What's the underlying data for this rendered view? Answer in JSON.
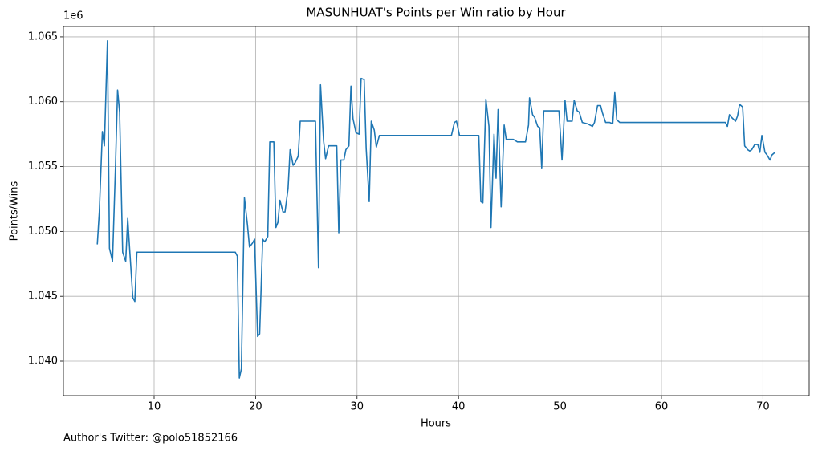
{
  "chart_data": {
    "type": "line",
    "title": "MASUNHUAT's Points per Win ratio by Hour",
    "x_label": "Hours",
    "y_label": "Points/Wins",
    "y_offset_label": "1e6",
    "footnote": "Author's Twitter: @polo51852166",
    "xlim": [
      1.06,
      74.56
    ],
    "ylim": [
      1.03734,
      1.0658
    ],
    "xticks": [
      10,
      20,
      30,
      40,
      50,
      60,
      70
    ],
    "yticks": [
      {
        "value": 1.04,
        "label": "1.040"
      },
      1.045,
      {
        "value": 1.05,
        "label": "1.050"
      },
      1.055,
      {
        "value": 1.06,
        "label": "1.060"
      },
      1.065
    ],
    "grid": true,
    "series": [
      {
        "color": "#1f77b4",
        "x": [
          4.4,
          4.6,
          4.9,
          5.1,
          5.4,
          5.6,
          5.9,
          6.2,
          6.4,
          6.6,
          6.9,
          7.2,
          7.4,
          7.6,
          7.9,
          8.1,
          8.3,
          18.0,
          18.2,
          18.4,
          18.6,
          18.9,
          19.2,
          19.4,
          19.7,
          19.9,
          20.2,
          20.4,
          20.7,
          20.9,
          21.2,
          21.4,
          21.8,
          22.0,
          22.2,
          22.4,
          22.7,
          22.9,
          23.2,
          23.4,
          23.7,
          23.9,
          24.2,
          24.4,
          25.9,
          26.2,
          26.4,
          26.7,
          26.9,
          27.2,
          28.0,
          28.2,
          28.4,
          28.7,
          28.9,
          29.2,
          29.4,
          29.6,
          29.9,
          30.2,
          30.4,
          30.7,
          30.9,
          31.2,
          31.4,
          31.7,
          31.9,
          32.2,
          39.3,
          39.6,
          39.8,
          40.1,
          42.0,
          42.2,
          42.4,
          42.7,
          43.0,
          43.2,
          43.5,
          43.7,
          43.9,
          44.2,
          44.5,
          44.7,
          45.4,
          45.8,
          46.6,
          46.9,
          47.0,
          47.3,
          47.5,
          47.8,
          48.0,
          48.2,
          48.4,
          49.9,
          50.2,
          50.5,
          50.7,
          51.2,
          51.4,
          51.7,
          51.9,
          52.2,
          52.7,
          53.2,
          53.4,
          53.7,
          54.0,
          54.2,
          54.5,
          54.9,
          55.2,
          55.4,
          55.6,
          55.9,
          66.3,
          66.5,
          66.7,
          66.9,
          67.3,
          67.5,
          67.7,
          68.0,
          68.2,
          68.5,
          68.7,
          68.9,
          69.2,
          69.5,
          69.7,
          69.9,
          70.2,
          70.4,
          70.7,
          70.9,
          71.2
        ],
        "values": [
          1.049,
          1.0515,
          1.0577,
          1.0566,
          1.0647,
          1.0487,
          1.0477,
          1.0552,
          1.0609,
          1.0592,
          1.0484,
          1.0477,
          1.051,
          1.0485,
          1.0449,
          1.0446,
          1.0484,
          1.0484,
          1.0481,
          1.0387,
          1.0394,
          1.0526,
          1.0505,
          1.0488,
          1.0491,
          1.0494,
          1.0419,
          1.0421,
          1.0494,
          1.0492,
          1.0496,
          1.0569,
          1.0569,
          1.0503,
          1.0507,
          1.0524,
          1.0515,
          1.0515,
          1.0533,
          1.0563,
          1.0551,
          1.0553,
          1.0558,
          1.0585,
          1.0585,
          1.0472,
          1.0613,
          1.057,
          1.0556,
          1.0566,
          1.0566,
          1.0499,
          1.0555,
          1.0555,
          1.0563,
          1.0566,
          1.0612,
          1.0587,
          1.0576,
          1.0575,
          1.0618,
          1.0617,
          1.0564,
          1.0523,
          1.0585,
          1.0578,
          1.0565,
          1.0574,
          1.0574,
          1.0584,
          1.0585,
          1.0574,
          1.0574,
          1.0523,
          1.0522,
          1.0602,
          1.0581,
          1.0503,
          1.0575,
          1.0541,
          1.0594,
          1.0519,
          1.0582,
          1.0571,
          1.0571,
          1.0569,
          1.0569,
          1.0582,
          1.0603,
          1.059,
          1.0588,
          1.0581,
          1.058,
          1.0549,
          1.0593,
          1.0593,
          1.0555,
          1.0601,
          1.0585,
          1.0585,
          1.0601,
          1.0593,
          1.0592,
          1.0584,
          1.0583,
          1.0581,
          1.0584,
          1.0597,
          1.0597,
          1.0591,
          1.0584,
          1.0584,
          1.0583,
          1.0607,
          1.0586,
          1.0584,
          1.0584,
          1.0581,
          1.059,
          1.0588,
          1.0585,
          1.0589,
          1.0598,
          1.0596,
          1.0566,
          1.0563,
          1.0562,
          1.0563,
          1.0567,
          1.0567,
          1.0561,
          1.0574,
          1.0561,
          1.0559,
          1.0555,
          1.0559,
          1.0561
        ]
      }
    ]
  }
}
